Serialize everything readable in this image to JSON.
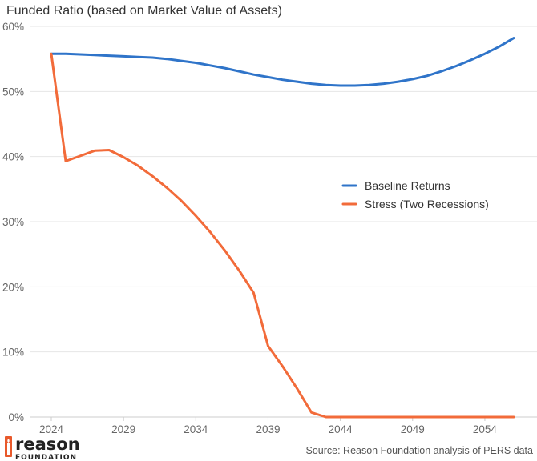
{
  "chart_data": {
    "type": "line",
    "title": "Funded Ratio (based on Market Value of Assets)",
    "xlabel": "",
    "ylabel": "",
    "x": [
      2024,
      2025,
      2026,
      2027,
      2028,
      2029,
      2030,
      2031,
      2032,
      2033,
      2034,
      2035,
      2036,
      2037,
      2038,
      2039,
      2040,
      2041,
      2042,
      2043,
      2044,
      2045,
      2046,
      2047,
      2048,
      2049,
      2050,
      2051,
      2052,
      2053,
      2054,
      2055,
      2056
    ],
    "xlim": [
      2024,
      2056
    ],
    "ylim": [
      0,
      60
    ],
    "x_ticks": [
      2024,
      2029,
      2034,
      2039,
      2044,
      2049,
      2054
    ],
    "x_tick_labels": [
      "2024",
      "2029",
      "2034",
      "2039",
      "2044",
      "2049",
      "2054"
    ],
    "y_ticks": [
      0,
      10,
      20,
      30,
      40,
      50,
      60
    ],
    "y_tick_labels": [
      "0%",
      "10%",
      "20%",
      "30%",
      "40%",
      "50%",
      "60%"
    ],
    "grid": "horizontal",
    "legend_position": "right",
    "series": [
      {
        "name": "Baseline Returns",
        "color": "#2f74c9",
        "values": [
          55.8,
          55.8,
          55.7,
          55.6,
          55.5,
          55.4,
          55.3,
          55.2,
          55.0,
          54.7,
          54.4,
          54.0,
          53.6,
          53.1,
          52.6,
          52.2,
          51.8,
          51.5,
          51.2,
          51.0,
          50.9,
          50.9,
          51.0,
          51.2,
          51.5,
          51.9,
          52.4,
          53.1,
          53.9,
          54.8,
          55.8,
          56.9,
          58.2
        ]
      },
      {
        "name": "Stress (Two Recessions)",
        "color": "#f26b3a",
        "values": [
          55.8,
          39.3,
          40.1,
          40.9,
          41.0,
          39.9,
          38.6,
          37.0,
          35.2,
          33.2,
          30.9,
          28.4,
          25.6,
          22.5,
          19.1,
          10.9,
          7.8,
          4.4,
          0.7,
          0.0,
          0.0,
          0.0,
          0.0,
          0.0,
          0.0,
          0.0,
          0.0,
          0.0,
          0.0,
          0.0,
          0.0,
          0.0,
          0.0
        ]
      }
    ]
  },
  "source": "Source: Reason Foundation analysis of PERS data",
  "logo": {
    "wordmark": "reason",
    "subtext": "FOUNDATION"
  },
  "colors": {
    "grid": "#e6e6e6",
    "axis": "#cccccc",
    "logo_accent": "#e8592b"
  }
}
